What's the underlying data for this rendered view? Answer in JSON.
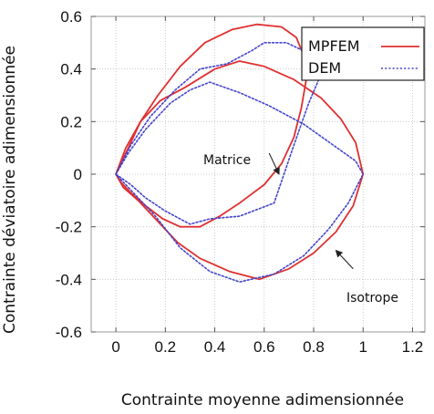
{
  "chart_data": {
    "type": "line",
    "title": "",
    "xlabel": "Contrainte moyenne adimensionnée",
    "ylabel": "Contrainte déviatoire adimensionnée",
    "xlim": [
      -0.1,
      1.25
    ],
    "ylim": [
      -0.6,
      0.6
    ],
    "grid": true,
    "legend_position": "top-right",
    "x_ticks": [
      {
        "value": 0,
        "label": "0"
      },
      {
        "value": 0.2,
        "label": "0.2"
      },
      {
        "value": 0.4,
        "label": "0.4"
      },
      {
        "value": 0.6,
        "label": "0.6"
      },
      {
        "value": 0.8,
        "label": "0.8"
      },
      {
        "value": 1,
        "label": "1"
      },
      {
        "value": 1.2,
        "label": "1.2"
      }
    ],
    "y_ticks": [
      {
        "value": 0.6,
        "label": "0.6"
      },
      {
        "value": 0.4,
        "label": "0.4"
      },
      {
        "value": 0.2,
        "label": "0.2"
      },
      {
        "value": 0,
        "label": "0"
      },
      {
        "value": -0.2,
        "label": "-0.2"
      },
      {
        "value": -0.4,
        "label": "-0.4"
      },
      {
        "value": -0.6,
        "label": "-0.6"
      }
    ],
    "series": [
      {
        "name": "MPFEM",
        "color": "#e03030",
        "dash": "solid",
        "curves": [
          {
            "label_id": "isotrope",
            "points": [
              [
                0,
                0
              ],
              [
                0.04,
                0.1
              ],
              [
                0.1,
                0.2
              ],
              [
                0.18,
                0.28
              ],
              [
                0.28,
                0.33
              ],
              [
                0.4,
                0.4
              ],
              [
                0.5,
                0.43
              ],
              [
                0.6,
                0.41
              ],
              [
                0.72,
                0.36
              ],
              [
                0.83,
                0.29
              ],
              [
                0.91,
                0.21
              ],
              [
                0.97,
                0.12
              ],
              [
                1.0,
                0
              ],
              [
                0.96,
                -0.12
              ],
              [
                0.89,
                -0.22
              ],
              [
                0.8,
                -0.3
              ],
              [
                0.7,
                -0.36
              ],
              [
                0.58,
                -0.4
              ],
              [
                0.46,
                -0.37
              ],
              [
                0.34,
                -0.32
              ],
              [
                0.25,
                -0.26
              ],
              [
                0.17,
                -0.18
              ],
              [
                0.09,
                -0.1
              ],
              [
                0.03,
                -0.05
              ],
              [
                0,
                0
              ]
            ]
          },
          {
            "label_id": "matrice",
            "points": [
              [
                0,
                0
              ],
              [
                0.05,
                0.1
              ],
              [
                0.1,
                0.2
              ],
              [
                0.17,
                0.3
              ],
              [
                0.26,
                0.41
              ],
              [
                0.36,
                0.5
              ],
              [
                0.47,
                0.55
              ],
              [
                0.57,
                0.57
              ],
              [
                0.67,
                0.56
              ],
              [
                0.73,
                0.52
              ],
              [
                0.76,
                0.45
              ],
              [
                0.77,
                0.36
              ],
              [
                0.75,
                0.25
              ],
              [
                0.72,
                0.14
              ],
              [
                0.67,
                0.04
              ],
              [
                0.6,
                -0.04
              ],
              [
                0.5,
                -0.11
              ],
              [
                0.42,
                -0.16
              ],
              [
                0.34,
                -0.2
              ],
              [
                0.26,
                -0.2
              ],
              [
                0.19,
                -0.17
              ],
              [
                0.12,
                -0.12
              ],
              [
                0.06,
                -0.07
              ],
              [
                0.02,
                -0.03
              ],
              [
                0,
                0
              ]
            ]
          }
        ]
      },
      {
        "name": "DEM",
        "color": "#4545cc",
        "dash": "dotted",
        "curves": [
          {
            "label_id": "isotrope",
            "points": [
              [
                0,
                0
              ],
              [
                0.05,
                0.08
              ],
              [
                0.12,
                0.17
              ],
              [
                0.22,
                0.27
              ],
              [
                0.3,
                0.32
              ],
              [
                0.38,
                0.35
              ],
              [
                0.5,
                0.31
              ],
              [
                0.62,
                0.26
              ],
              [
                0.76,
                0.19
              ],
              [
                0.88,
                0.11
              ],
              [
                0.97,
                0.05
              ],
              [
                1.0,
                0
              ],
              [
                0.94,
                -0.11
              ],
              [
                0.86,
                -0.21
              ],
              [
                0.76,
                -0.31
              ],
              [
                0.64,
                -0.38
              ],
              [
                0.5,
                -0.41
              ],
              [
                0.38,
                -0.37
              ],
              [
                0.26,
                -0.28
              ],
              [
                0.16,
                -0.16
              ],
              [
                0.07,
                -0.07
              ],
              [
                0,
                0
              ]
            ]
          },
          {
            "label_id": "matrice",
            "points": [
              [
                0,
                0
              ],
              [
                0.06,
                0.11
              ],
              [
                0.14,
                0.22
              ],
              [
                0.24,
                0.32
              ],
              [
                0.34,
                0.4
              ],
              [
                0.45,
                0.42
              ],
              [
                0.55,
                0.47
              ],
              [
                0.6,
                0.5
              ],
              [
                0.69,
                0.5
              ],
              [
                0.78,
                0.46
              ],
              [
                0.83,
                0.38
              ],
              [
                0.78,
                0.27
              ],
              [
                0.72,
                0.11
              ],
              [
                0.64,
                -0.11
              ],
              [
                0.5,
                -0.16
              ],
              [
                0.38,
                -0.17
              ],
              [
                0.3,
                -0.19
              ],
              [
                0.2,
                -0.14
              ],
              [
                0.12,
                -0.09
              ],
              [
                0.06,
                -0.04
              ],
              [
                0,
                0
              ]
            ]
          }
        ]
      }
    ],
    "annotations": [
      {
        "id": "matrice",
        "text": "Matrice",
        "tail": [
          0.62,
          0.08
        ],
        "head": [
          0.66,
          0.0
        ]
      },
      {
        "id": "isotrope",
        "text": "Isotrope",
        "tail": [
          0.96,
          -0.36
        ],
        "head": [
          0.89,
          -0.29
        ]
      }
    ]
  }
}
